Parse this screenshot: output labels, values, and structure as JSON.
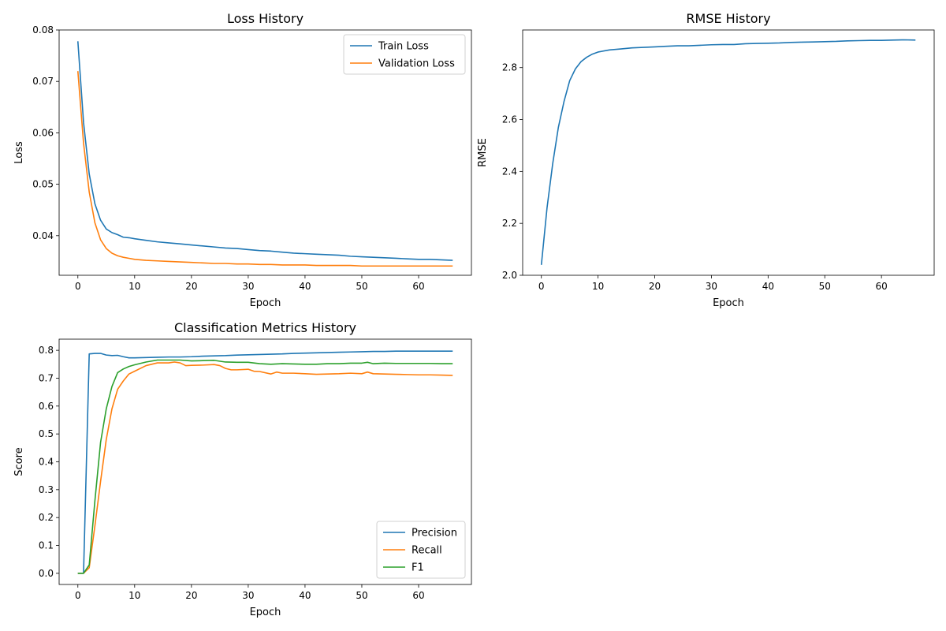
{
  "chart_data": [
    {
      "type": "line",
      "title": "Loss History",
      "xlabel": "Epoch",
      "ylabel": "Loss",
      "xlim": [
        -3.3,
        69.3
      ],
      "ylim": [
        0.0323,
        0.08
      ],
      "xticks": [
        0,
        10,
        20,
        30,
        40,
        50,
        60
      ],
      "yticks": [
        0.04,
        0.05,
        0.06,
        0.07,
        0.08
      ],
      "ytick_labels": [
        "0.04",
        "0.05",
        "0.06",
        "0.07",
        "0.08"
      ],
      "grid": false,
      "legend": "top-right",
      "series": [
        {
          "name": "Train Loss",
          "color": "#1f77b4",
          "x": [
            0,
            1,
            2,
            3,
            4,
            5,
            6,
            7,
            8,
            9,
            10,
            12,
            14,
            16,
            18,
            20,
            22,
            24,
            26,
            28,
            30,
            32,
            34,
            36,
            38,
            40,
            42,
            44,
            46,
            48,
            50,
            52,
            54,
            56,
            58,
            60,
            62,
            64,
            66
          ],
          "y": [
            0.0778,
            0.062,
            0.052,
            0.0462,
            0.043,
            0.0413,
            0.0406,
            0.0402,
            0.0397,
            0.0396,
            0.0394,
            0.0391,
            0.0388,
            0.0386,
            0.0384,
            0.0382,
            0.038,
            0.0378,
            0.0376,
            0.0375,
            0.0373,
            0.0371,
            0.037,
            0.0368,
            0.0366,
            0.0365,
            0.0364,
            0.0363,
            0.0362,
            0.036,
            0.0359,
            0.0358,
            0.0357,
            0.0356,
            0.0355,
            0.0354,
            0.0354,
            0.0353,
            0.0352
          ]
        },
        {
          "name": "Validation Loss",
          "color": "#ff7f0e",
          "x": [
            0,
            1,
            2,
            3,
            4,
            5,
            6,
            7,
            8,
            9,
            10,
            12,
            14,
            16,
            18,
            20,
            22,
            24,
            26,
            28,
            30,
            32,
            34,
            36,
            38,
            40,
            42,
            44,
            46,
            48,
            50,
            52,
            54,
            56,
            58,
            60,
            62,
            64,
            66
          ],
          "y": [
            0.072,
            0.058,
            0.0485,
            0.0425,
            0.0392,
            0.0375,
            0.0366,
            0.0361,
            0.0358,
            0.0356,
            0.0354,
            0.0352,
            0.0351,
            0.035,
            0.0349,
            0.0348,
            0.0347,
            0.0346,
            0.0346,
            0.0345,
            0.0345,
            0.0344,
            0.0344,
            0.0343,
            0.0343,
            0.0343,
            0.0342,
            0.0342,
            0.0342,
            0.0342,
            0.0341,
            0.0341,
            0.0341,
            0.0341,
            0.0341,
            0.0341,
            0.0341,
            0.0341,
            0.0341
          ]
        }
      ]
    },
    {
      "type": "line",
      "title": "RMSE History",
      "xlabel": "Epoch",
      "ylabel": "RMSE",
      "xlim": [
        -3.3,
        69.3
      ],
      "ylim": [
        2.0,
        2.945
      ],
      "xticks": [
        0,
        10,
        20,
        30,
        40,
        50,
        60
      ],
      "yticks": [
        2.0,
        2.2,
        2.4,
        2.6,
        2.8
      ],
      "ytick_labels": [
        "2.0",
        "2.2",
        "2.4",
        "2.6",
        "2.8"
      ],
      "grid": false,
      "legend": "none",
      "series": [
        {
          "name": "",
          "color": "#1f77b4",
          "x": [
            0,
            1,
            2,
            3,
            4,
            5,
            6,
            7,
            8,
            9,
            10,
            12,
            14,
            16,
            18,
            20,
            22,
            24,
            26,
            28,
            30,
            32,
            34,
            36,
            38,
            40,
            42,
            44,
            46,
            48,
            50,
            52,
            54,
            56,
            58,
            60,
            62,
            64,
            66
          ],
          "y": [
            2.04,
            2.26,
            2.43,
            2.57,
            2.67,
            2.75,
            2.795,
            2.823,
            2.84,
            2.852,
            2.86,
            2.868,
            2.872,
            2.876,
            2.878,
            2.88,
            2.882,
            2.884,
            2.884,
            2.886,
            2.888,
            2.889,
            2.889,
            2.892,
            2.893,
            2.894,
            2.895,
            2.897,
            2.898,
            2.899,
            2.9,
            2.901,
            2.903,
            2.904,
            2.905,
            2.905,
            2.906,
            2.907,
            2.906
          ]
        }
      ]
    },
    {
      "type": "line",
      "title": "Classification Metrics History",
      "xlabel": "Epoch",
      "ylabel": "Score",
      "xlim": [
        -3.3,
        69.3
      ],
      "ylim": [
        -0.04,
        0.84
      ],
      "xticks": [
        0,
        10,
        20,
        30,
        40,
        50,
        60
      ],
      "yticks": [
        0.0,
        0.1,
        0.2,
        0.3,
        0.4,
        0.5,
        0.6,
        0.7,
        0.8
      ],
      "ytick_labels": [
        "0.0",
        "0.1",
        "0.2",
        "0.3",
        "0.4",
        "0.5",
        "0.6",
        "0.7",
        "0.8"
      ],
      "grid": false,
      "legend": "bottom-right",
      "series": [
        {
          "name": "Precision",
          "color": "#1f77b4",
          "x": [
            0,
            1,
            2,
            3,
            4,
            5,
            6,
            7,
            8,
            9,
            10,
            12,
            14,
            16,
            18,
            20,
            22,
            24,
            26,
            28,
            30,
            32,
            34,
            36,
            38,
            40,
            42,
            44,
            46,
            48,
            50,
            52,
            54,
            56,
            58,
            60,
            62,
            64,
            66
          ],
          "y": [
            0.0,
            0.0,
            0.787,
            0.789,
            0.789,
            0.783,
            0.781,
            0.782,
            0.777,
            0.773,
            0.773,
            0.774,
            0.775,
            0.776,
            0.776,
            0.777,
            0.779,
            0.78,
            0.781,
            0.783,
            0.784,
            0.785,
            0.786,
            0.787,
            0.789,
            0.79,
            0.791,
            0.792,
            0.793,
            0.794,
            0.795,
            0.796,
            0.796,
            0.797,
            0.797,
            0.797,
            0.797,
            0.797,
            0.797
          ]
        },
        {
          "name": "Recall",
          "color": "#ff7f0e",
          "x": [
            0,
            1,
            2,
            3,
            4,
            5,
            6,
            7,
            8,
            9,
            10,
            12,
            14,
            16,
            17,
            18,
            19,
            20,
            22,
            24,
            25,
            26,
            27,
            28,
            30,
            31,
            32,
            34,
            35,
            36,
            38,
            40,
            42,
            44,
            46,
            48,
            50,
            51,
            52,
            54,
            56,
            58,
            60,
            62,
            64,
            66
          ],
          "y": [
            0.0,
            0.0,
            0.02,
            0.17,
            0.33,
            0.48,
            0.59,
            0.66,
            0.69,
            0.715,
            0.725,
            0.745,
            0.755,
            0.755,
            0.758,
            0.755,
            0.745,
            0.746,
            0.747,
            0.749,
            0.745,
            0.735,
            0.73,
            0.73,
            0.732,
            0.725,
            0.724,
            0.715,
            0.722,
            0.718,
            0.718,
            0.716,
            0.714,
            0.715,
            0.716,
            0.718,
            0.716,
            0.722,
            0.716,
            0.715,
            0.714,
            0.713,
            0.712,
            0.712,
            0.711,
            0.71
          ]
        },
        {
          "name": "F1",
          "color": "#2ca02c",
          "x": [
            0,
            1,
            2,
            3,
            4,
            5,
            6,
            7,
            8,
            9,
            10,
            12,
            14,
            16,
            18,
            20,
            22,
            24,
            26,
            28,
            30,
            32,
            34,
            36,
            38,
            40,
            42,
            44,
            46,
            48,
            50,
            51,
            52,
            54,
            56,
            58,
            60,
            62,
            64,
            66
          ],
          "y": [
            0.0,
            0.0,
            0.03,
            0.26,
            0.47,
            0.59,
            0.67,
            0.72,
            0.733,
            0.742,
            0.748,
            0.758,
            0.765,
            0.765,
            0.765,
            0.762,
            0.763,
            0.764,
            0.758,
            0.757,
            0.757,
            0.752,
            0.75,
            0.752,
            0.751,
            0.75,
            0.75,
            0.752,
            0.752,
            0.754,
            0.754,
            0.757,
            0.752,
            0.754,
            0.753,
            0.753,
            0.753,
            0.753,
            0.752,
            0.752
          ]
        }
      ]
    }
  ]
}
